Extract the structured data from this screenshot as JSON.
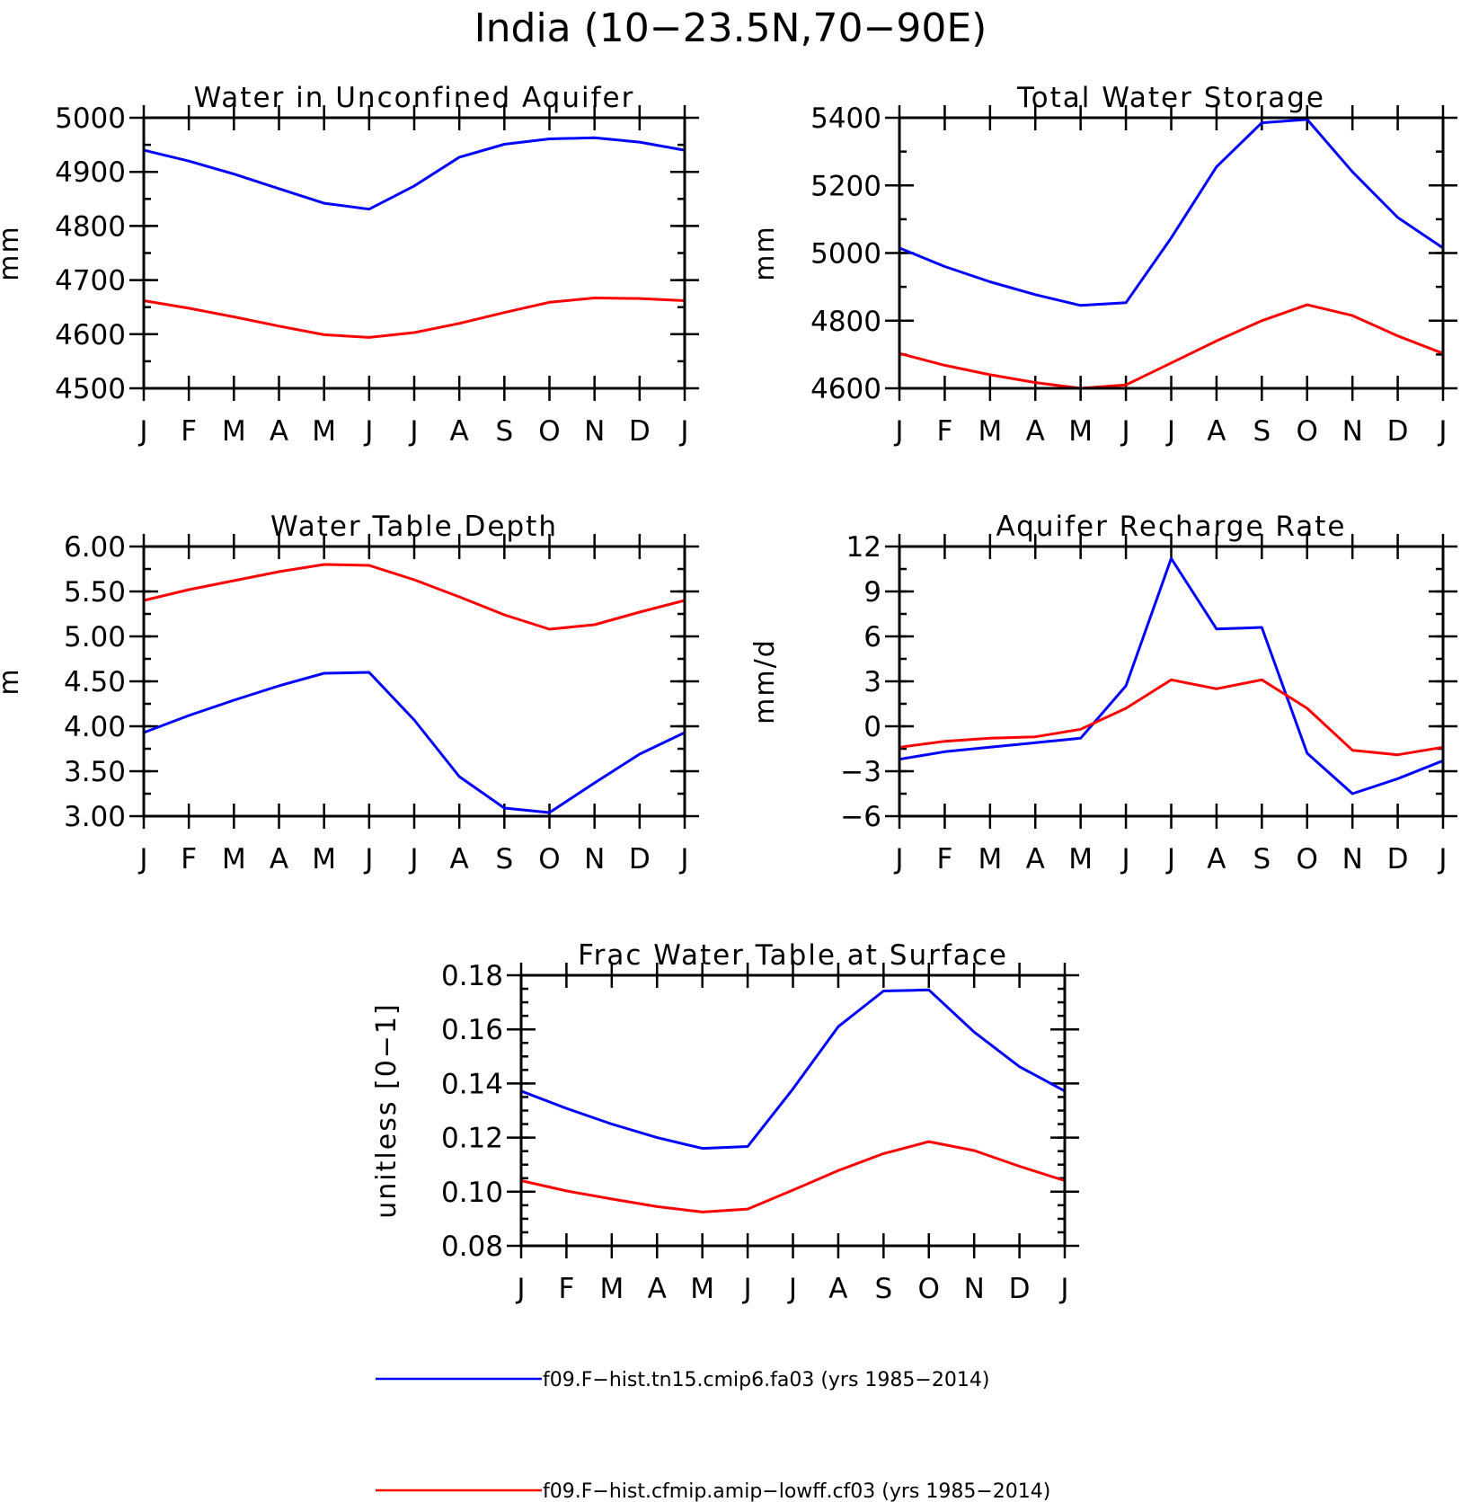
{
  "figure": {
    "title": "India (10−23.5N,70−90E)"
  },
  "colors": {
    "series_a": "#0000ff",
    "series_b": "#ff0000"
  },
  "legend": [
    {
      "label": "f09.F−hist.tn15.cmip6.fa03 (yrs 1985−2014)",
      "color": "#0000ff"
    },
    {
      "label": "f09.F−hist.cfmip.amip−lowff.cf03 (yrs 1985−2014)",
      "color": "#ff0000"
    }
  ],
  "chart_data": [
    {
      "type": "line",
      "title": "Water in Unconfined Aquifer",
      "xlabel": "",
      "ylabel": "mm",
      "categories": [
        "J",
        "F",
        "M",
        "A",
        "M",
        "J",
        "J",
        "A",
        "S",
        "O",
        "N",
        "D",
        "J"
      ],
      "ylim": [
        4500,
        5000
      ],
      "yticks": [
        4500,
        4600,
        4700,
        4800,
        4900,
        5000
      ],
      "yticklabels": [
        "4500",
        "4600",
        "4700",
        "4800",
        "4900",
        "5000"
      ],
      "minor_step": 50,
      "series": [
        {
          "name": "f09.F−hist.tn15.cmip6.fa03 (yrs 1985−2014)",
          "color": "#0000ff",
          "values": [
            4940,
            4920,
            4896,
            4869,
            4842,
            4831,
            4874,
            4927,
            4951,
            4961,
            4963,
            4955,
            4940
          ]
        },
        {
          "name": "f09.F−hist.cfmip.amip−lowff.cf03 (yrs 1985−2014)",
          "color": "#ff0000",
          "values": [
            4662,
            4648,
            4632,
            4615,
            4599,
            4594,
            4603,
            4620,
            4640,
            4659,
            4667,
            4666,
            4662
          ]
        }
      ]
    },
    {
      "type": "line",
      "title": "Total Water Storage",
      "xlabel": "",
      "ylabel": "mm",
      "categories": [
        "J",
        "F",
        "M",
        "A",
        "M",
        "J",
        "J",
        "A",
        "S",
        "O",
        "N",
        "D",
        "J"
      ],
      "ylim": [
        4600,
        5400
      ],
      "yticks": [
        4600,
        4800,
        5000,
        5200,
        5400
      ],
      "yticklabels": [
        "4600",
        "4800",
        "5000",
        "5200",
        "5400"
      ],
      "minor_step": 100,
      "series": [
        {
          "name": "f09.F−hist.tn15.cmip6.fa03 (yrs 1985−2014)",
          "color": "#0000ff",
          "values": [
            5015,
            4960,
            4915,
            4877,
            4845,
            4853,
            5045,
            5255,
            5385,
            5395,
            5240,
            5105,
            5015
          ]
        },
        {
          "name": "f09.F−hist.cfmip.amip−lowff.cf03 (yrs 1985−2014)",
          "color": "#ff0000",
          "values": [
            4703,
            4668,
            4640,
            4617,
            4600,
            4610,
            4675,
            4740,
            4800,
            4847,
            4815,
            4755,
            4703
          ]
        }
      ]
    },
    {
      "type": "line",
      "title": "Water Table Depth",
      "xlabel": "",
      "ylabel": "m",
      "categories": [
        "J",
        "F",
        "M",
        "A",
        "M",
        "J",
        "J",
        "A",
        "S",
        "O",
        "N",
        "D",
        "J"
      ],
      "ylim": [
        3.0,
        6.0
      ],
      "yticks": [
        3.0,
        3.5,
        4.0,
        4.5,
        5.0,
        5.5,
        6.0
      ],
      "yticklabels": [
        "3.00",
        "3.50",
        "4.00",
        "4.50",
        "5.00",
        "5.50",
        "6.00"
      ],
      "minor_step": 0.25,
      "series": [
        {
          "name": "f09.F−hist.tn15.cmip6.fa03 (yrs 1985−2014)",
          "color": "#0000ff",
          "values": [
            3.93,
            4.12,
            4.29,
            4.45,
            4.59,
            4.6,
            4.07,
            3.44,
            3.09,
            3.04,
            3.37,
            3.69,
            3.93
          ]
        },
        {
          "name": "f09.F−hist.cfmip.amip−lowff.cf03 (yrs 1985−2014)",
          "color": "#ff0000",
          "values": [
            5.4,
            5.52,
            5.62,
            5.72,
            5.8,
            5.79,
            5.63,
            5.44,
            5.24,
            5.08,
            5.13,
            5.27,
            5.4
          ]
        }
      ]
    },
    {
      "type": "line",
      "title": "Aquifer Recharge Rate",
      "xlabel": "",
      "ylabel": "mm/d",
      "categories": [
        "J",
        "F",
        "M",
        "A",
        "M",
        "J",
        "J",
        "A",
        "S",
        "O",
        "N",
        "D",
        "J"
      ],
      "ylim": [
        -6,
        12
      ],
      "yticks": [
        -6,
        -3,
        0,
        3,
        6,
        9,
        12
      ],
      "yticklabels": [
        "−6",
        "−3",
        "0",
        "3",
        "6",
        "9",
        "12"
      ],
      "minor_step": 1.5,
      "series": [
        {
          "name": "f09.F−hist.tn15.cmip6.fa03 (yrs 1985−2014)",
          "color": "#0000ff",
          "values": [
            -2.2,
            -1.7,
            -1.4,
            -1.1,
            -0.8,
            2.7,
            11.2,
            6.5,
            6.6,
            -1.8,
            -4.5,
            -3.5,
            -2.3
          ]
        },
        {
          "name": "f09.F−hist.cfmip.amip−lowff.cf03 (yrs 1985−2014)",
          "color": "#ff0000",
          "values": [
            -1.4,
            -1.0,
            -0.8,
            -0.7,
            -0.2,
            1.2,
            3.1,
            2.5,
            3.1,
            1.2,
            -1.6,
            -1.9,
            -1.4
          ]
        }
      ]
    },
    {
      "type": "line",
      "title": "Frac Water Table at Surface",
      "xlabel": "",
      "ylabel": "unitless [0−1]",
      "categories": [
        "J",
        "F",
        "M",
        "A",
        "M",
        "J",
        "J",
        "A",
        "S",
        "O",
        "N",
        "D",
        "J"
      ],
      "ylim": [
        0.08,
        0.18
      ],
      "yticks": [
        0.08,
        0.1,
        0.12,
        0.14,
        0.16,
        0.18
      ],
      "yticklabels": [
        "0.08",
        "0.10",
        "0.12",
        "0.14",
        "0.16",
        "0.18"
      ],
      "minor_step": 0.005,
      "series": [
        {
          "name": "f09.F−hist.tn15.cmip6.fa03 (yrs 1985−2014)",
          "color": "#0000ff",
          "values": [
            0.1372,
            0.1308,
            0.125,
            0.12,
            0.116,
            0.1167,
            0.138,
            0.161,
            0.1742,
            0.1746,
            0.159,
            0.1462,
            0.1372
          ]
        },
        {
          "name": "f09.F−hist.cfmip.amip−lowff.cf03 (yrs 1985−2014)",
          "color": "#ff0000",
          "values": [
            0.1041,
            0.1003,
            0.0973,
            0.0945,
            0.0925,
            0.0936,
            0.1006,
            0.1078,
            0.1141,
            0.1185,
            0.1152,
            0.1094,
            0.1041
          ]
        }
      ]
    }
  ]
}
